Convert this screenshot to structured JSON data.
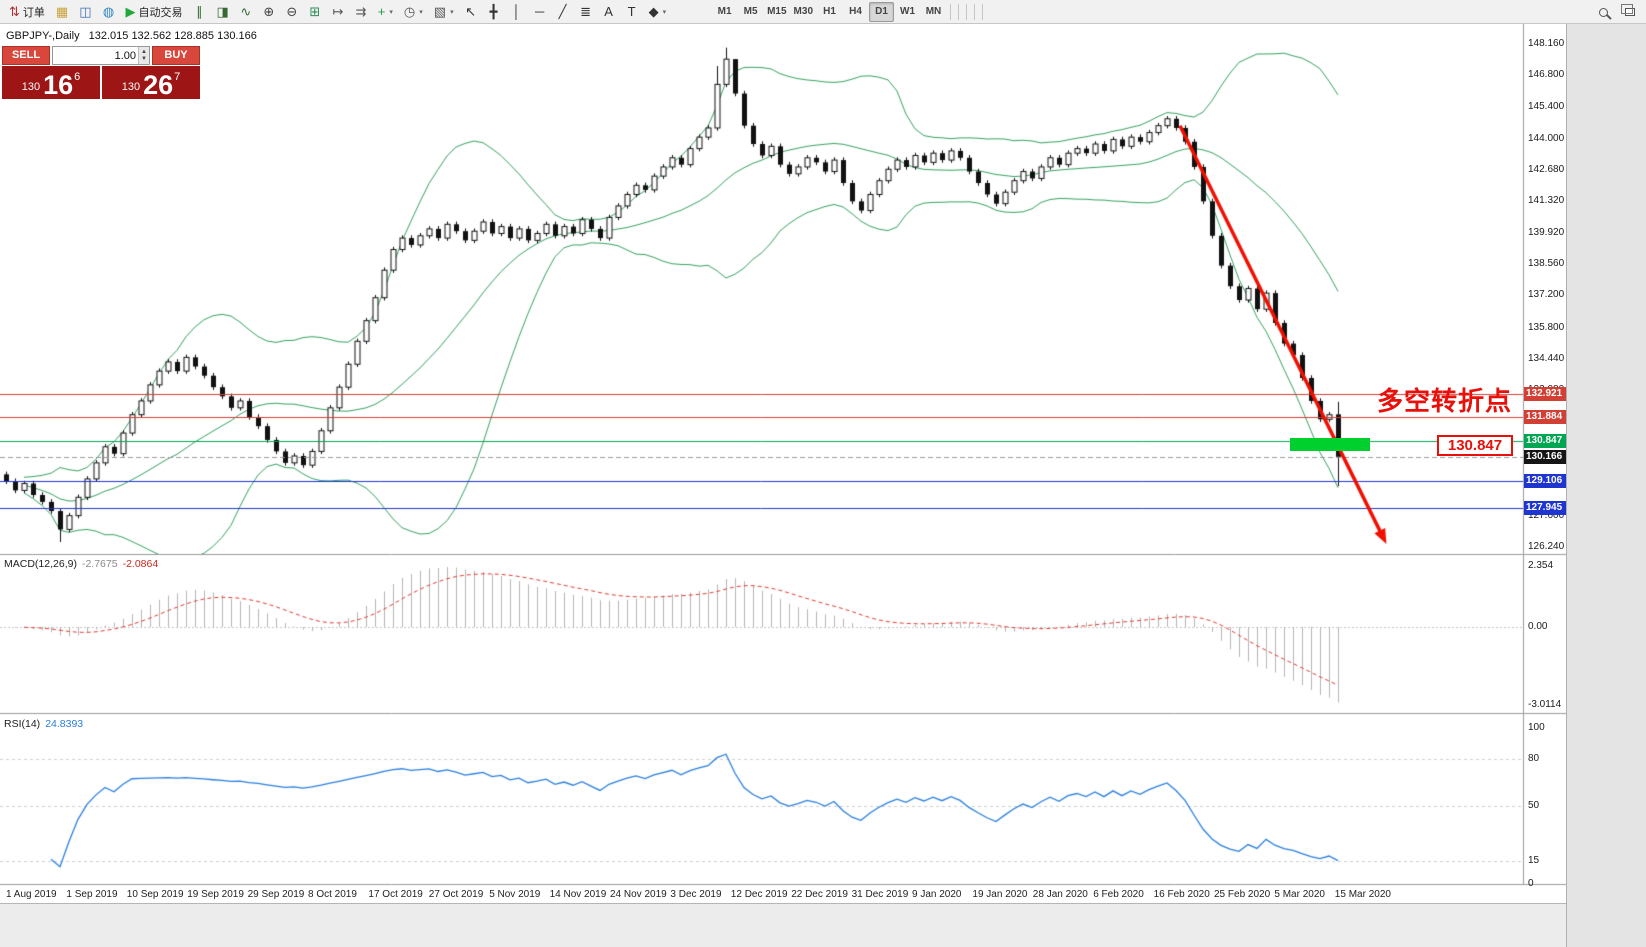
{
  "toolbar": {
    "items": [
      {
        "name": "new-order-button",
        "glyph": "⇅",
        "color": "#b03030",
        "label": "订单"
      },
      {
        "name": "profiles-icon",
        "glyph": "▦",
        "color": "#c9a23a"
      },
      {
        "name": "market-watch-icon",
        "glyph": "◫",
        "color": "#3a6fb5"
      },
      {
        "name": "mql5-community-icon",
        "glyph": "◍",
        "color": "#2e86c1"
      },
      {
        "name": "autotrading-button",
        "glyph": "▶",
        "color": "#21a73c",
        "label": "自动交易"
      },
      {
        "type": "sep"
      },
      {
        "name": "bar-chart-icon",
        "glyph": "∥",
        "color": "#356a35"
      },
      {
        "name": "candlestick-chart-icon",
        "glyph": "◨",
        "color": "#356a35"
      },
      {
        "name": "line-chart-icon",
        "glyph": "∿",
        "color": "#356a35"
      },
      {
        "type": "sep"
      },
      {
        "name": "zoom-in-icon",
        "glyph": "⊕",
        "color": "#444444"
      },
      {
        "name": "zoom-out-icon",
        "glyph": "⊖",
        "color": "#444444"
      },
      {
        "type": "sep"
      },
      {
        "name": "tile-windows-icon",
        "glyph": "⊞",
        "color": "#2e8b57"
      },
      {
        "name": "chart-shift-icon",
        "glyph": "↦",
        "color": "#555555"
      },
      {
        "name": "auto-scroll-icon",
        "glyph": "⇉",
        "color": "#555555"
      },
      {
        "name": "indicators-icon",
        "glyph": "+",
        "color": "#1e9e3e",
        "dropdown": true
      },
      {
        "name": "periods-icon",
        "glyph": "◷",
        "color": "#555555",
        "dropdown": true
      },
      {
        "name": "templates-icon",
        "glyph": "▧",
        "color": "#555555",
        "dropdown": true
      },
      {
        "type": "sep"
      },
      {
        "name": "cursor-icon",
        "glyph": "↖",
        "color": "#333333"
      },
      {
        "name": "crosshair-icon",
        "glyph": "╋",
        "color": "#333333"
      },
      {
        "type": "sep"
      },
      {
        "name": "vertical-line-icon",
        "glyph": "│",
        "color": "#333333"
      },
      {
        "name": "horizontal-line-icon",
        "glyph": "─",
        "color": "#333333"
      },
      {
        "name": "trendline-icon",
        "glyph": "╱",
        "color": "#333333"
      },
      {
        "name": "fibonacci-icon",
        "glyph": "≣",
        "color": "#333333"
      },
      {
        "name": "text-icon",
        "glyph": "A",
        "color": "#333333"
      },
      {
        "name": "text-label-icon",
        "glyph": "T",
        "color": "#333333"
      },
      {
        "name": "arrows-icon",
        "glyph": "◆",
        "color": "#333333",
        "dropdown": true
      }
    ],
    "timeframes": [
      "M1",
      "M5",
      "M15",
      "M30",
      "H1",
      "H4",
      "D1",
      "W1",
      "MN"
    ],
    "active_timeframe": "D1"
  },
  "chart_header": {
    "title": "GBPJPY-,Daily",
    "ohlc": "132.015 132.562 128.885 130.166"
  },
  "trade_panel": {
    "sell_label": "SELL",
    "buy_label": "BUY",
    "volume": "1.00",
    "sell_price": {
      "prefix": "130",
      "big": "16",
      "sup": "6"
    },
    "buy_price": {
      "prefix": "130",
      "big": "26",
      "sup": "7"
    }
  },
  "annotations": {
    "turning_point": "多空转折点",
    "level_label": "130.847"
  },
  "chart_data": [
    {
      "type": "candlestick",
      "symbol": "GBPJPY-",
      "timeframe": "Daily",
      "ohlc_current": {
        "open": 132.015,
        "high": 132.562,
        "low": 128.885,
        "close": 130.166
      },
      "first_open": 129.4,
      "closes": [
        129.1,
        128.7,
        129.0,
        128.5,
        128.2,
        127.8,
        127.0,
        127.6,
        128.4,
        129.2,
        129.9,
        130.6,
        130.3,
        131.2,
        132.0,
        132.6,
        133.3,
        133.9,
        134.3,
        133.9,
        134.5,
        134.1,
        133.7,
        133.2,
        132.8,
        132.3,
        132.6,
        131.9,
        131.5,
        130.9,
        130.4,
        129.9,
        130.2,
        129.8,
        130.4,
        131.3,
        132.3,
        133.2,
        134.2,
        135.2,
        136.1,
        137.1,
        138.3,
        139.2,
        139.7,
        139.4,
        139.8,
        140.1,
        139.7,
        140.3,
        140.0,
        139.6,
        140.0,
        140.4,
        139.9,
        140.2,
        139.7,
        140.1,
        139.6,
        139.9,
        140.3,
        139.8,
        140.2,
        139.9,
        140.5,
        140.1,
        139.7,
        140.6,
        141.1,
        141.6,
        142.0,
        141.8,
        142.4,
        142.8,
        143.2,
        142.9,
        143.6,
        144.1,
        144.5,
        146.4,
        147.5,
        146.0,
        144.6,
        143.8,
        143.3,
        143.7,
        142.9,
        142.5,
        142.8,
        143.2,
        143.0,
        142.6,
        143.1,
        142.1,
        141.3,
        140.9,
        141.6,
        142.2,
        142.7,
        143.1,
        142.8,
        143.3,
        143.0,
        143.4,
        143.1,
        143.5,
        143.2,
        142.6,
        142.1,
        141.6,
        141.2,
        141.7,
        142.2,
        142.6,
        142.3,
        142.8,
        143.2,
        142.9,
        143.4,
        143.6,
        143.4,
        143.8,
        143.5,
        144.0,
        143.7,
        144.1,
        143.9,
        144.3,
        144.6,
        144.9,
        144.5,
        143.9,
        142.8,
        141.3,
        139.8,
        138.5,
        137.6,
        137.0,
        137.5,
        136.6,
        137.3,
        136.0,
        135.1,
        134.6,
        133.6,
        132.6,
        131.8,
        132.0,
        130.166
      ],
      "wick_overrides": [
        {
          "i": 6,
          "l": 126.45
        },
        {
          "i": 79,
          "h": 147.2
        },
        {
          "i": 80,
          "h": 148.0
        },
        {
          "i": 81,
          "h": 147.5
        },
        {
          "i": 148,
          "o": 132.015,
          "h": 132.562,
          "l": 128.885
        }
      ],
      "bollinger": {
        "period": 20,
        "deviation": 2,
        "color": "#35a060"
      },
      "horizontal_lines": [
        {
          "price": 132.921,
          "color": "#d23f34",
          "style": "solid"
        },
        {
          "price": 131.884,
          "color": "#d23f34",
          "style": "solid"
        },
        {
          "price": 130.847,
          "color": "#00a651",
          "style": "solid"
        },
        {
          "price": 130.166,
          "color": "#999999",
          "style": "dash"
        },
        {
          "price": 129.106,
          "color": "#1f35d0",
          "style": "solid"
        },
        {
          "price": 127.945,
          "color": "#1f35d0",
          "style": "solid"
        }
      ],
      "axis_price_labels": [
        {
          "text": "132.921",
          "bg": "#d23f34"
        },
        {
          "text": "131.884",
          "bg": "#d23f34"
        },
        {
          "text": "130.847",
          "bg": "#00a651"
        },
        {
          "text": "130.166",
          "bg": "#151515"
        },
        {
          "text": "129.106",
          "bg": "#1f35d0"
        },
        {
          "text": "127.945",
          "bg": "#1f35d0"
        }
      ],
      "y_ticks": [
        "148.160",
        "146.800",
        "145.400",
        "144.000",
        "142.680",
        "141.320",
        "139.920",
        "138.560",
        "137.200",
        "135.800",
        "134.440",
        "133.080",
        "127.600",
        "126.240"
      ],
      "x_labels": [
        "1 Aug 2019",
        "1 Sep 2019",
        "10 Sep 2019",
        "19 Sep 2019",
        "29 Sep 2019",
        "8 Oct 2019",
        "17 Oct 2019",
        "27 Oct 2019",
        "5 Nov 2019",
        "14 Nov 2019",
        "24 Nov 2019",
        "3 Dec 2019",
        "12 Dec 2019",
        "22 Dec 2019",
        "31 Dec 2019",
        "9 Jan 2020",
        "19 Jan 2020",
        "28 Jan 2020",
        "6 Feb 2020",
        "16 Feb 2020",
        "25 Feb 2020",
        "5 Mar 2020",
        "15 Mar 2020"
      ],
      "trend_arrow": {
        "color": "#f01000",
        "x_from": 1180,
        "price_from": 144.6,
        "x_to": 1382,
        "price_to": 126.75
      },
      "highlight_zone": {
        "price": 130.847,
        "color": "#00d02e"
      }
    },
    {
      "type": "macd",
      "name": "MACD(12,26,9)",
      "main_value": "-2.7675",
      "signal_value": "-2.0864",
      "y_ticks": [
        "2.354",
        "0.00",
        "-3.0114"
      ],
      "histogram_color": "#b4b4b4",
      "signal_color": "#e03c32"
    },
    {
      "type": "rsi",
      "name": "RSI(14)",
      "value": "24.8393",
      "y_ticks": [
        "100",
        "80",
        "50",
        "15",
        "0"
      ],
      "levels": [
        80,
        50,
        15
      ],
      "line_color": "#2a7fde"
    }
  ]
}
